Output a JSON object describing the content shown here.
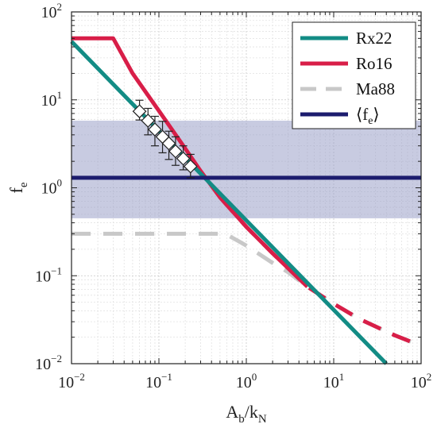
{
  "chart_data": {
    "type": "line",
    "xscale": "log",
    "yscale": "log",
    "xlim": [
      0.01,
      100
    ],
    "ylim": [
      0.01,
      100
    ],
    "grid": true,
    "legend_position": "top-right",
    "xlabel": {
      "main": "A",
      "sub": "b",
      "slash": "/k",
      "sub2": "N"
    },
    "ylabel": {
      "main": "f",
      "sub": "e"
    },
    "x_ticks": [
      {
        "value": 0.01,
        "base": "10",
        "exp": "−2"
      },
      {
        "value": 0.1,
        "base": "10",
        "exp": "−1"
      },
      {
        "value": 1,
        "base": "10",
        "exp": "0"
      },
      {
        "value": 10,
        "base": "10",
        "exp": "1"
      },
      {
        "value": 100,
        "base": "10",
        "exp": "2"
      }
    ],
    "y_ticks": [
      {
        "value": 0.01,
        "base": "10",
        "exp": "−2"
      },
      {
        "value": 0.1,
        "base": "10",
        "exp": "−1"
      },
      {
        "value": 1,
        "base": "10",
        "exp": "0"
      },
      {
        "value": 10,
        "base": "10",
        "exp": "1"
      },
      {
        "value": 100,
        "base": "10",
        "exp": "2"
      }
    ],
    "band": {
      "y_low": 0.45,
      "y_high": 5.8,
      "color": "#9aa0c8"
    },
    "series": [
      {
        "name": "Ma88",
        "color": "#c8c8c8",
        "dash": true,
        "points": [
          [
            0.01,
            0.3
          ],
          [
            0.5,
            0.3
          ],
          [
            0.65,
            0.28
          ],
          [
            0.8,
            0.25
          ],
          [
            1,
            0.22
          ],
          [
            2,
            0.14
          ],
          [
            3,
            0.11
          ],
          [
            5,
            0.075
          ],
          [
            10,
            0.048
          ],
          [
            20,
            0.032
          ],
          [
            50,
            0.021
          ],
          [
            100,
            0.016
          ]
        ]
      },
      {
        "name": "Ro16",
        "color": "#d81e48",
        "dash": false,
        "points": [
          [
            0.01,
            50
          ],
          [
            0.03,
            50
          ],
          [
            0.05,
            20
          ],
          [
            0.1,
            7.5
          ],
          [
            0.2,
            2.8
          ],
          [
            0.3,
            1.55
          ],
          [
            0.5,
            0.78
          ],
          [
            1,
            0.36
          ],
          [
            2,
            0.18
          ],
          [
            5,
            0.075
          ]
        ]
      },
      {
        "name": "Ro16-dashed",
        "color": "#d81e48",
        "dash": true,
        "points": [
          [
            0.5,
            0.78
          ],
          [
            1,
            0.36
          ],
          [
            2,
            0.18
          ],
          [
            5,
            0.075
          ],
          [
            10,
            0.048
          ],
          [
            20,
            0.032
          ],
          [
            50,
            0.021
          ],
          [
            100,
            0.016
          ]
        ]
      },
      {
        "name": "Rx22",
        "color": "#138c85",
        "dash": false,
        "points": [
          [
            0.01,
            46
          ],
          [
            40,
            0.01
          ]
        ]
      },
      {
        "name": "⟨f_e⟩",
        "color": "#1c1c6e",
        "dash": false,
        "points": [
          [
            0.01,
            1.3
          ],
          [
            100,
            1.3
          ]
        ]
      }
    ],
    "markers": [
      {
        "x": 0.06,
        "y": 7.4,
        "lo": 5.9,
        "hi": 9.9
      },
      {
        "x": 0.075,
        "y": 5.8,
        "lo": 4.0,
        "hi": 8.0
      },
      {
        "x": 0.09,
        "y": 4.6,
        "lo": 3.0,
        "hi": 6.5
      },
      {
        "x": 0.11,
        "y": 3.8,
        "lo": 2.5,
        "hi": 5.7
      },
      {
        "x": 0.13,
        "y": 3.2,
        "lo": 2.1,
        "hi": 4.4
      },
      {
        "x": 0.155,
        "y": 2.6,
        "lo": 1.8,
        "hi": 3.8
      },
      {
        "x": 0.19,
        "y": 2.15,
        "lo": 1.6,
        "hi": 3.0
      },
      {
        "x": 0.23,
        "y": 1.75,
        "lo": 1.3,
        "hi": 2.4
      }
    ],
    "legend": [
      {
        "label": "Rx22",
        "color": "#138c85",
        "dash": false
      },
      {
        "label": "Ro16",
        "color": "#d81e48",
        "dash": false
      },
      {
        "label": "Ma88",
        "color": "#c8c8c8",
        "dash": true
      },
      {
        "label": "⟨f",
        "label_sub": "e",
        "label_end": "⟩",
        "color": "#1c1c6e",
        "dash": false
      }
    ]
  }
}
